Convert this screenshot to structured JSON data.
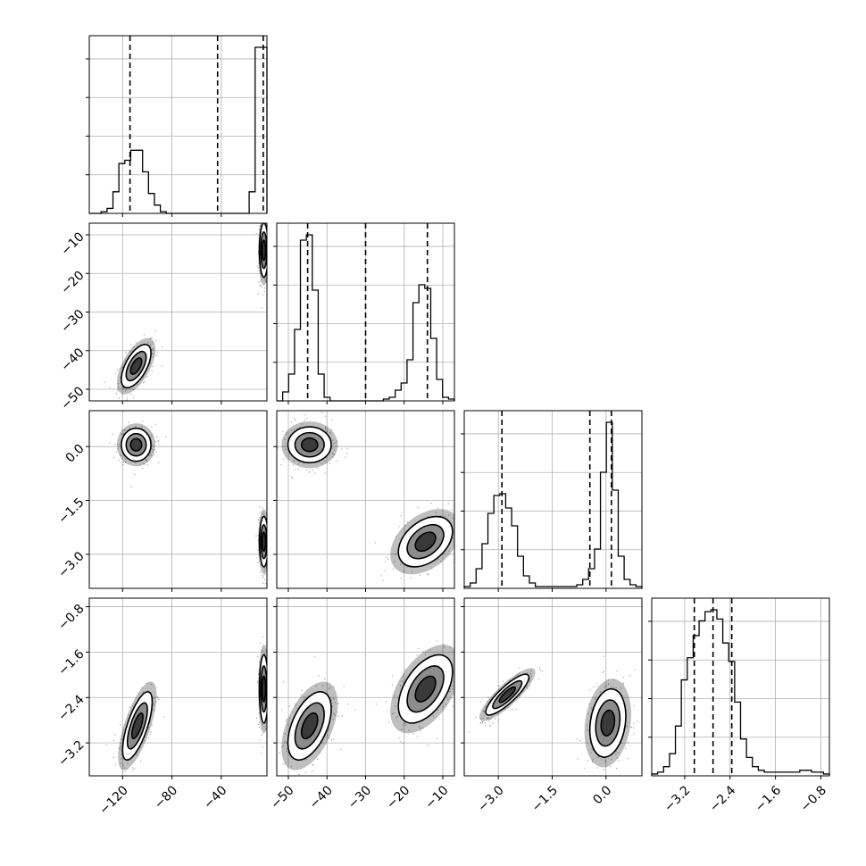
{
  "chart_data": {
    "type": "corner",
    "grid": true,
    "parameters": [
      {
        "range": [
          -147,
          -3
        ],
        "ticks": [
          -120,
          -80,
          -40
        ],
        "tick_labels": [
          "−120",
          "−80",
          "−40"
        ],
        "quantiles": [
          -114,
          -43,
          -6
        ],
        "hist": {
          "bin_edges": [
            -147,
            -142.2,
            -137.4,
            -132.6,
            -127.8,
            -123,
            -118.2,
            -113.4,
            -108.6,
            -103.8,
            -99,
            -94.2,
            -89.4,
            -84.6,
            -79.8,
            -75,
            -70.2,
            -65.4,
            -60.6,
            -55.8,
            -51,
            -46.2,
            -41.4,
            -36.6,
            -31.8,
            -27,
            -22.2,
            -17.4,
            -12.6,
            -7.8,
            -3
          ],
          "counts": [
            0,
            0,
            0.01,
            0.03,
            0.13,
            0.3,
            0.32,
            0.38,
            0.38,
            0.25,
            0.12,
            0.05,
            0.01,
            0,
            0,
            0,
            0,
            0,
            0,
            0,
            0,
            0,
            0,
            0,
            0,
            0,
            0,
            0.13,
            1.0,
            1.0
          ]
        }
      },
      {
        "range": [
          -53,
          -7
        ],
        "ticks": [
          -50,
          -40,
          -30,
          -20,
          -10
        ],
        "tick_labels": [
          "−50",
          "−40",
          "−30",
          "−20",
          "−10"
        ],
        "quantiles": [
          -45,
          -30,
          -14
        ],
        "hist": {
          "bin_edges": [
            -53,
            -51.47,
            -49.93,
            -48.4,
            -46.87,
            -45.33,
            -43.8,
            -42.27,
            -40.73,
            -39.2,
            -37.67,
            -36.13,
            -34.6,
            -33.07,
            -31.53,
            -30,
            -28.47,
            -26.93,
            -25.4,
            -23.87,
            -22.33,
            -20.8,
            -19.27,
            -17.73,
            -16.2,
            -14.67,
            -13.13,
            -11.6,
            -10.07,
            -8.53,
            -7
          ],
          "counts": [
            0,
            0.05,
            0.15,
            0.4,
            0.9,
            0.93,
            0.62,
            0.15,
            0.02,
            0,
            0,
            0,
            0,
            0,
            0,
            0,
            0,
            0,
            0.01,
            0.02,
            0.06,
            0.1,
            0.23,
            0.55,
            0.65,
            0.63,
            0.35,
            0.12,
            0.02,
            0.01
          ]
        }
      },
      {
        "range": [
          -3.95,
          1.0
        ],
        "ticks": [
          -3.0,
          -1.5,
          0.0
        ],
        "tick_labels": [
          "−3.0",
          "−1.5",
          "0.0"
        ],
        "quantiles": [
          -2.9,
          -0.45,
          0.15
        ],
        "hist": {
          "bin_edges": [
            -3.95,
            -3.785,
            -3.62,
            -3.455,
            -3.29,
            -3.125,
            -2.96,
            -2.795,
            -2.63,
            -2.465,
            -2.3,
            -2.135,
            -1.97,
            -1.805,
            -1.64,
            -1.475,
            -1.31,
            -1.145,
            -0.98,
            -0.815,
            -0.65,
            -0.485,
            -0.32,
            -0.155,
            0.01,
            0.175,
            0.34,
            0.505,
            0.67,
            0.835,
            1.0
          ],
          "counts": [
            0.01,
            0.03,
            0.11,
            0.25,
            0.42,
            0.52,
            0.53,
            0.45,
            0.35,
            0.18,
            0.07,
            0.03,
            0.01,
            0.01,
            0.01,
            0.01,
            0.01,
            0.01,
            0.01,
            0.02,
            0.05,
            0.11,
            0.22,
            0.65,
            0.93,
            0.55,
            0.18,
            0.05,
            0.02,
            0.01
          ]
        }
      },
      {
        "range": [
          -3.78,
          -0.65
        ],
        "ticks": [
          -3.2,
          -2.4,
          -1.6,
          -0.8
        ],
        "tick_labels": [
          "−3.2",
          "−2.4",
          "−1.6",
          "−0.8"
        ],
        "quantiles": [
          -3.03,
          -2.7,
          -2.37
        ],
        "hist": {
          "bin_edges": [
            -3.78,
            -3.6757,
            -3.5713,
            -3.467,
            -3.3627,
            -3.2583,
            -3.154,
            -3.0497,
            -2.9453,
            -2.841,
            -2.7367,
            -2.6323,
            -2.528,
            -2.4237,
            -2.3193,
            -2.215,
            -2.1107,
            -2.0063,
            -1.902,
            -1.7977,
            -1.6933,
            -1.589,
            -1.4847,
            -1.3803,
            -1.276,
            -1.1717,
            -1.0673,
            -0.963,
            -0.8587,
            -0.7543,
            -0.65
          ],
          "counts": [
            0.01,
            0.02,
            0.05,
            0.12,
            0.27,
            0.52,
            0.64,
            0.76,
            0.84,
            0.89,
            0.9,
            0.85,
            0.72,
            0.62,
            0.4,
            0.2,
            0.1,
            0.05,
            0.03,
            0.02,
            0.02,
            0.02,
            0.02,
            0.02,
            0.02,
            0.03,
            0.03,
            0.02,
            0.02,
            0.01
          ]
        }
      }
    ],
    "pairs": [
      {
        "row": 1,
        "col": 0,
        "modes": [
          {
            "mean": [
              -109,
              -44
            ],
            "sd": [
              6,
              2.8
            ],
            "rho": 0.6,
            "weight": 0.5
          },
          {
            "mean": [
              -5.5,
              -14
            ],
            "sd": [
              1.8,
              3.5
            ],
            "rho": 0.0,
            "weight": 0.5
          }
        ]
      },
      {
        "row": 2,
        "col": 0,
        "modes": [
          {
            "mean": [
              -109,
              0.05
            ],
            "sd": [
              6,
              0.23
            ],
            "rho": 0.0,
            "weight": 0.5
          },
          {
            "mean": [
              -5.5,
              -2.65
            ],
            "sd": [
              1.8,
              0.35
            ],
            "rho": 0.0,
            "weight": 0.5
          }
        ]
      },
      {
        "row": 2,
        "col": 1,
        "modes": [
          {
            "mean": [
              -44.5,
              0.05
            ],
            "sd": [
              2.8,
              0.25
            ],
            "rho": 0.0,
            "weight": 0.5
          },
          {
            "mean": [
              -14.5,
              -2.65
            ],
            "sd": [
              3.5,
              0.35
            ],
            "rho": 0.4,
            "weight": 0.5
          }
        ]
      },
      {
        "row": 3,
        "col": 0,
        "modes": [
          {
            "mean": [
              -108,
              -2.9
            ],
            "sd": [
              6,
              0.3
            ],
            "rho": 0.7,
            "weight": 0.5
          },
          {
            "mean": [
              -5.5,
              -2.25
            ],
            "sd": [
              1.8,
              0.3
            ],
            "rho": 0.0,
            "weight": 0.5
          }
        ]
      },
      {
        "row": 3,
        "col": 1,
        "modes": [
          {
            "mean": [
              -44.5,
              -2.9
            ],
            "sd": [
              2.8,
              0.3
            ],
            "rho": 0.5,
            "weight": 0.5
          },
          {
            "mean": [
              -14.5,
              -2.25
            ],
            "sd": [
              3.5,
              0.3
            ],
            "rho": 0.5,
            "weight": 0.5
          }
        ]
      },
      {
        "row": 3,
        "col": 2,
        "modes": [
          {
            "mean": [
              -2.75,
              -2.35
            ],
            "sd": [
              0.3,
              0.18
            ],
            "rho": 0.85,
            "weight": 0.5
          },
          {
            "mean": [
              0.05,
              -2.85
            ],
            "sd": [
              0.25,
              0.3
            ],
            "rho": 0.2,
            "weight": 0.5
          }
        ]
      }
    ]
  }
}
